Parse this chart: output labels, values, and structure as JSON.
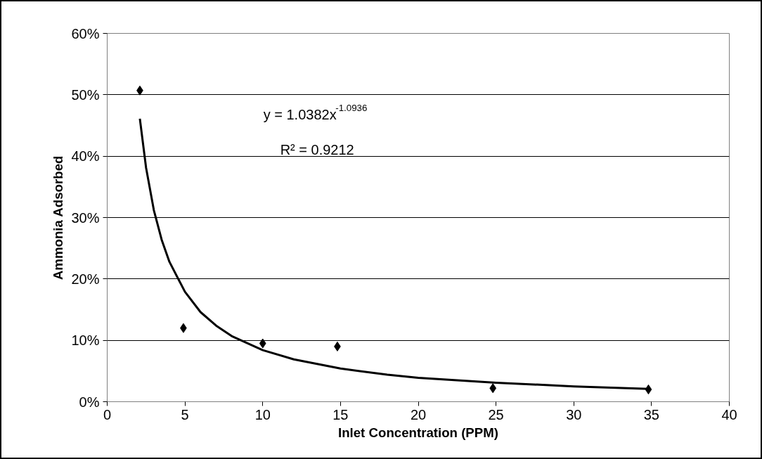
{
  "chart_data": {
    "type": "scatter",
    "xlabel": "Inlet Concentration (PPM)",
    "ylabel": "Ammonia Adsorbed",
    "xlim": [
      0,
      40
    ],
    "xticks": [
      0,
      5,
      10,
      15,
      20,
      25,
      30,
      35,
      40
    ],
    "ylim": [
      0,
      0.6
    ],
    "yticks": [
      {
        "value": 0,
        "label": "0%"
      },
      {
        "value": 0.1,
        "label": "10%"
      },
      {
        "value": 0.2,
        "label": "20%"
      },
      {
        "value": 0.3,
        "label": "30%"
      },
      {
        "value": 0.4,
        "label": "40%"
      },
      {
        "value": 0.5,
        "label": "50%"
      },
      {
        "value": 0.6,
        "label": "60%"
      }
    ],
    "grid": "y",
    "marker": "diamond",
    "series": [
      {
        "color": "#000000",
        "x": [
          2.1,
          4.9,
          10,
          14.8,
          24.8,
          34.8
        ],
        "values": [
          0.507,
          0.12,
          0.095,
          0.09,
          0.022,
          0.02
        ]
      },
      {
        "type": "line",
        "color": "#000000",
        "line_style": "solid",
        "marker": "none",
        "x": [
          2.1,
          2.5,
          3,
          3.5,
          4,
          5,
          6,
          7,
          8,
          10,
          12,
          15,
          18,
          20,
          25,
          30,
          34.8
        ],
        "values": [
          0.461,
          0.381,
          0.312,
          0.264,
          0.228,
          0.179,
          0.146,
          0.124,
          0.107,
          0.084,
          0.069,
          0.054,
          0.044,
          0.039,
          0.031,
          0.025,
          0.021
        ]
      }
    ],
    "annotations": [
      "y = 1.0382x$^{-1.0936}$",
      "R² = 0.9212"
    ]
  }
}
